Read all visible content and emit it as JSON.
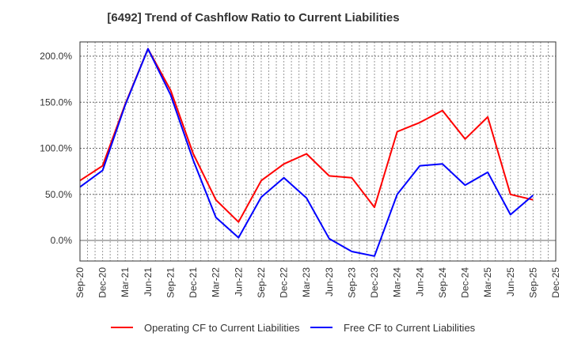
{
  "chart_data": {
    "type": "line",
    "title": "[6492]  Trend of Cashflow Ratio to Current Liabilities",
    "xlabel": "",
    "ylabel": "",
    "ylim": [
      -22,
      215
    ],
    "y_ticks": [
      0,
      50,
      100,
      150,
      200
    ],
    "y_tick_labels": [
      "0.0%",
      "50.0%",
      "100.0%",
      "150.0%",
      "200.0%"
    ],
    "x_tick_labels": [
      "Sep-20",
      "Dec-20",
      "Mar-21",
      "Jun-21",
      "Sep-21",
      "Dec-21",
      "Mar-22",
      "Jun-22",
      "Sep-22",
      "Dec-22",
      "Mar-23",
      "Jun-23",
      "Sep-23",
      "Dec-23",
      "Mar-24",
      "Jun-24",
      "Sep-24",
      "Dec-24",
      "Mar-25",
      "Jun-25",
      "Sep-25",
      "Dec-25"
    ],
    "categories": [
      "Sep-20",
      "Dec-20",
      "Mar-21",
      "Jun-21",
      "Sep-21",
      "Dec-21",
      "Mar-22",
      "Jun-22",
      "Sep-22",
      "Dec-22",
      "Mar-23",
      "Jun-23",
      "Sep-23",
      "Dec-23",
      "Mar-24",
      "Jun-24",
      "Sep-24",
      "Dec-24",
      "Mar-25",
      "Jun-25",
      "Sep-25"
    ],
    "grid": true,
    "legend_position": "bottom",
    "series": [
      {
        "name": "Operating CF to Current Liabilities",
        "color": "#ff0000",
        "values": [
          65,
          81,
          148,
          208,
          163,
          94,
          44,
          20,
          65,
          83,
          94,
          70,
          68,
          36,
          118,
          128,
          141,
          110,
          134,
          50,
          44
        ]
      },
      {
        "name": "Free CF to Current Liabilities",
        "color": "#0000ff",
        "values": [
          58,
          76,
          147,
          208,
          158,
          87,
          25,
          3,
          47,
          68,
          46,
          2,
          -12,
          -17,
          50,
          81,
          83,
          60,
          74,
          28,
          49
        ]
      }
    ]
  }
}
